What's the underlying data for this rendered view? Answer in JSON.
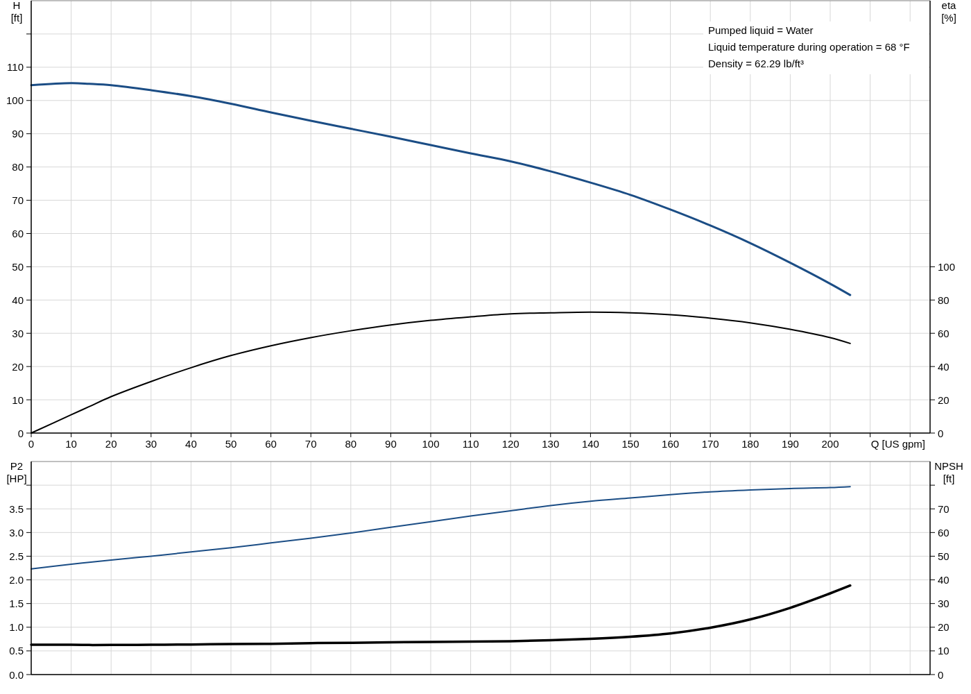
{
  "chart_data": [
    {
      "type": "line",
      "xlabel": "Q [US gpm]",
      "ylabel": "H [ft]",
      "y2label": "eta [%]",
      "annotations": [
        "Pumped liquid = Water",
        "Liquid temperature during operation = 68 °F",
        "Density = 62.29 lb/ft³"
      ],
      "x": [
        0,
        10,
        14.5,
        20,
        30,
        40,
        50,
        60,
        70,
        80,
        90,
        100,
        110,
        120,
        130,
        140,
        150,
        160,
        170,
        180,
        190,
        200,
        205
      ],
      "series": [
        {
          "color": "#1b4d85",
          "values": [
            104.6,
            105.2,
            105.0,
            104.6,
            103.1,
            101.3,
            99.0,
            96.4,
            93.9,
            91.5,
            89.1,
            86.6,
            84.1,
            81.7,
            78.7,
            75.3,
            71.6,
            67.2,
            62.4,
            57.1,
            51.2,
            44.9,
            41.5
          ]
        },
        {
          "color": "#000000",
          "axis": "y2",
          "values": [
            0,
            11.0,
            15.9,
            21.9,
            31.0,
            39.3,
            46.6,
            52.5,
            57.4,
            61.5,
            65.0,
            67.8,
            69.9,
            71.7,
            72.3,
            72.7,
            72.3,
            71.2,
            69.1,
            66.3,
            62.4,
            57.4,
            53.9
          ]
        }
      ],
      "xlim": [
        0,
        225
      ],
      "xticks": [
        0,
        10,
        20,
        30,
        40,
        50,
        60,
        70,
        80,
        90,
        100,
        110,
        120,
        130,
        140,
        150,
        160,
        170,
        180,
        190,
        200,
        {
          "value": 210,
          "label": null
        },
        {
          "value": 220,
          "label": null
        }
      ],
      "ylim": [
        0,
        130
      ],
      "yticks": [
        0,
        10,
        20,
        30,
        40,
        50,
        60,
        70,
        80,
        90,
        100,
        110,
        {
          "value": 120,
          "label": null
        }
      ],
      "y2lim": [
        0,
        260
      ],
      "y2ticks": [
        0,
        20,
        40,
        60,
        80,
        100
      ],
      "grid": true
    },
    {
      "type": "line",
      "ylabel": "P2 [HP]",
      "y2label": "NPSH [ft]",
      "x": [
        0,
        10,
        14.5,
        20,
        30,
        40,
        50,
        60,
        70,
        80,
        90,
        100,
        110,
        120,
        130,
        140,
        150,
        160,
        170,
        180,
        190,
        200,
        205
      ],
      "series": [
        {
          "color": "#1b4d85",
          "values": [
            2.23,
            2.33,
            2.37,
            2.42,
            2.5,
            2.59,
            2.68,
            2.78,
            2.88,
            2.99,
            3.11,
            3.23,
            3.35,
            3.46,
            3.57,
            3.66,
            3.73,
            3.8,
            3.86,
            3.9,
            3.93,
            3.95,
            3.97
          ]
        },
        {
          "color": "#000000",
          "axis": "y2",
          "values": [
            12.6,
            12.6,
            12.5,
            12.5,
            12.6,
            12.7,
            12.9,
            13.0,
            13.3,
            13.4,
            13.6,
            13.8,
            13.9,
            14.1,
            14.5,
            15.1,
            16.0,
            17.4,
            19.8,
            23.3,
            28.2,
            34.3,
            37.6
          ]
        }
      ],
      "xlim": [
        0,
        225
      ],
      "xticks": [
        0,
        10,
        20,
        30,
        40,
        50,
        60,
        70,
        80,
        90,
        100,
        110,
        120,
        130,
        140,
        150,
        160,
        170,
        180,
        190,
        200,
        210,
        220
      ],
      "ylim": [
        0,
        4.5
      ],
      "yticks": [
        {
          "value": 0,
          "label": "0.0"
        },
        0.5,
        {
          "value": 1,
          "label": "1.0"
        },
        1.5,
        {
          "value": 2,
          "label": "2.0"
        },
        2.5,
        {
          "value": 3,
          "label": "3.0"
        },
        3.5,
        {
          "value": 4,
          "label": null
        }
      ],
      "y2lim": [
        0,
        90
      ],
      "y2ticks": [
        0,
        10,
        20,
        30,
        40,
        50,
        60,
        70,
        {
          "value": 80,
          "label": null
        }
      ],
      "tick_labels": "y",
      "grid": true
    }
  ]
}
